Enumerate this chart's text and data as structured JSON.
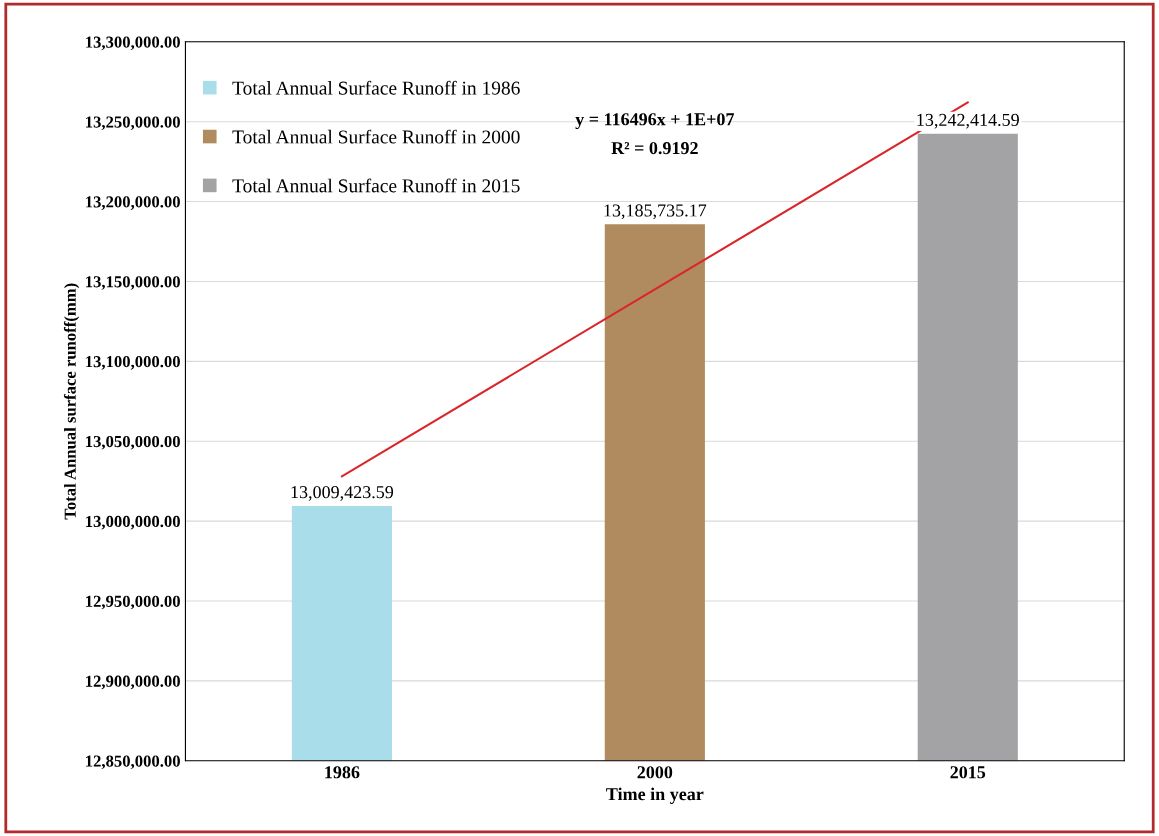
{
  "chart_data": {
    "type": "bar",
    "xlabel": "Time in year",
    "ylabel": "Total Annual surface runoff(mm)",
    "categories": [
      "1986",
      "2000",
      "2015"
    ],
    "series": [
      {
        "name": "Total Annual Surface Runoff in 1986",
        "color": "#a9dde9",
        "values": [
          13009423.59,
          null,
          null
        ],
        "value_labels": [
          "13,009,423.59",
          null,
          null
        ]
      },
      {
        "name": "Total Annual Surface Runoff in 2000",
        "color": "#b08b5f",
        "values": [
          null,
          13185735.17,
          null
        ],
        "value_labels": [
          null,
          "13,185,735.17",
          null
        ]
      },
      {
        "name": "Total Annual Surface Runoff in 2015",
        "color": "#a3a3a6",
        "values": [
          null,
          null,
          13242414.59
        ],
        "value_labels": [
          null,
          null,
          "13,242,414.59"
        ]
      },
      {
        "type": "line",
        "color": "#d9262b",
        "values": [
          13028000,
          13145000,
          13262000
        ]
      }
    ],
    "annotations": [
      "y = 116496x + 1E+07",
      "R² = 0.9192"
    ],
    "ylim": [
      12850000,
      13300000
    ],
    "yticks": [
      {
        "value": 12850000,
        "label": "12,850,000.00"
      },
      {
        "value": 12900000,
        "label": "12,900,000.00"
      },
      {
        "value": 12950000,
        "label": "12,950,000.00"
      },
      {
        "value": 13000000,
        "label": "13,000,000.00"
      },
      {
        "value": 13050000,
        "label": "13,050,000.00"
      },
      {
        "value": 13100000,
        "label": "13,100,000.00"
      },
      {
        "value": 13150000,
        "label": "13,150,000.00"
      },
      {
        "value": 13200000,
        "label": "13,200,000.00"
      },
      {
        "value": 13250000,
        "label": "13,250,000.00"
      },
      {
        "value": 13300000,
        "label": "13,300,000.00"
      }
    ],
    "grid": "y",
    "legend": "top left"
  }
}
